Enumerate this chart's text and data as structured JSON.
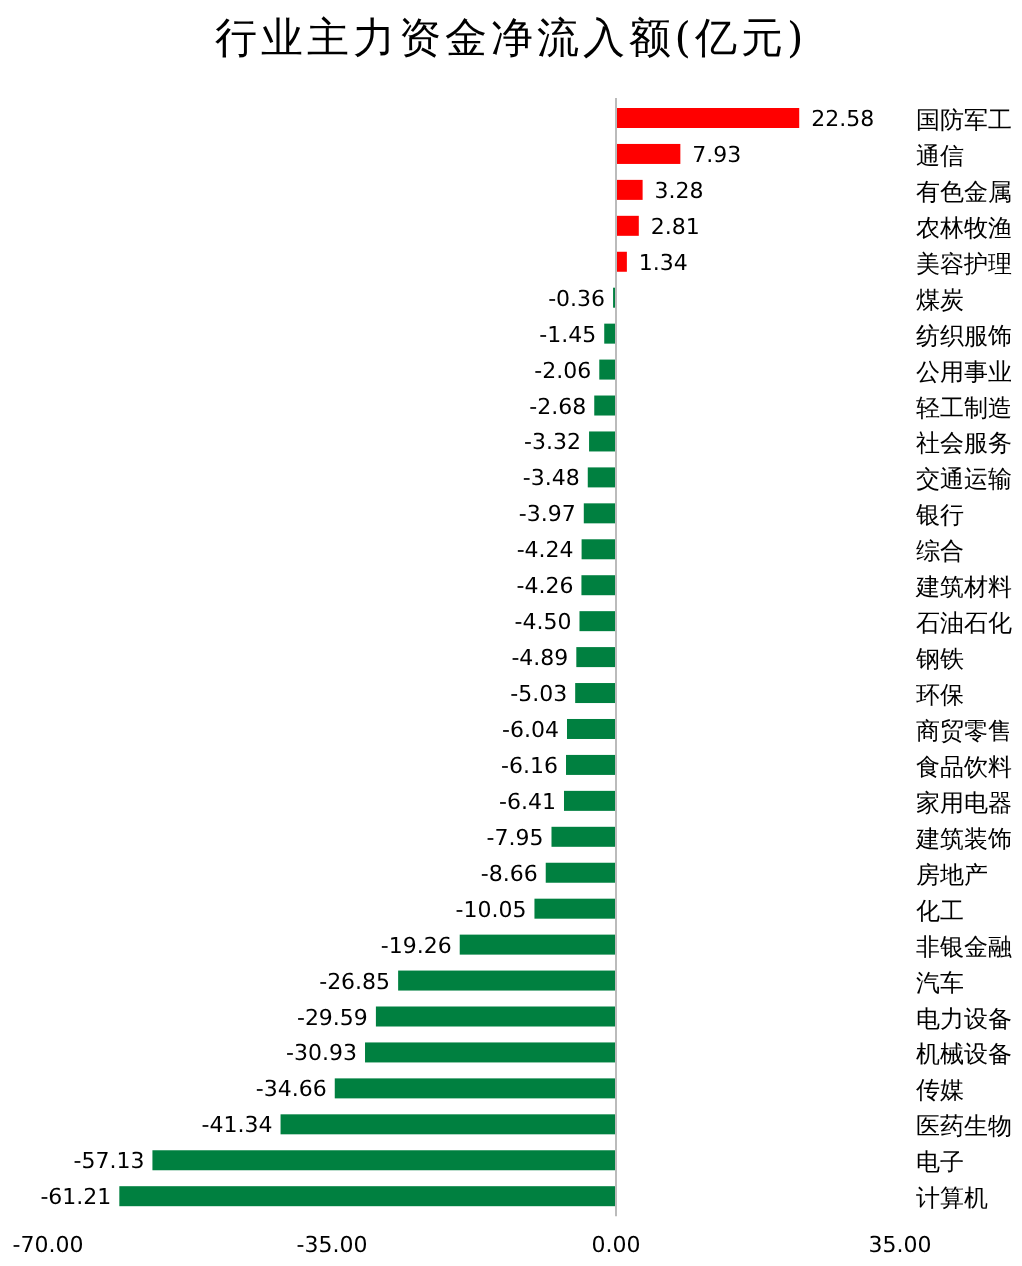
{
  "chart_data": {
    "type": "bar",
    "orientation": "horizontal",
    "title": "行业主力资金净流入额(亿元)",
    "categories": [
      "国防军工",
      "通信",
      "有色金属",
      "农林牧渔",
      "美容护理",
      "煤炭",
      "纺织服饰",
      "公用事业",
      "轻工制造",
      "社会服务",
      "交通运输",
      "银行",
      "综合",
      "建筑材料",
      "石油石化",
      "钢铁",
      "环保",
      "商贸零售",
      "食品饮料",
      "家用电器",
      "建筑装饰",
      "房地产",
      "化工",
      "非银金融",
      "汽车",
      "电力设备",
      "机械设备",
      "传媒",
      "医药生物",
      "电子",
      "计算机"
    ],
    "values": [
      22.58,
      7.93,
      3.28,
      2.81,
      1.34,
      -0.36,
      -1.45,
      -2.06,
      -2.68,
      -3.32,
      -3.48,
      -3.97,
      -4.24,
      -4.26,
      -4.5,
      -4.89,
      -5.03,
      -6.04,
      -6.16,
      -6.41,
      -7.95,
      -8.66,
      -10.05,
      -19.26,
      -26.85,
      -29.59,
      -30.93,
      -34.66,
      -41.34,
      -57.13,
      -61.21
    ],
    "value_labels": [
      "22.58",
      "7.93",
      "3.28",
      "2.81",
      "1.34",
      "-0.36",
      "-1.45",
      "-2.06",
      "-2.68",
      "-3.32",
      "-3.48",
      "-3.97",
      "-4.24",
      "-4.26",
      "-4.50",
      "-4.89",
      "-5.03",
      "-6.04",
      "-6.16",
      "-6.41",
      "-7.95",
      "-8.66",
      "-10.05",
      "-19.26",
      "-26.85",
      "-29.59",
      "-30.93",
      "-34.66",
      "-41.34",
      "-57.13",
      "-61.21"
    ],
    "colors": [
      "#ff0000",
      "#ff0000",
      "#ff0000",
      "#ff0000",
      "#ff0000",
      "#008040",
      "#008040",
      "#008040",
      "#008040",
      "#008040",
      "#008040",
      "#008040",
      "#008040",
      "#008040",
      "#008040",
      "#008040",
      "#008040",
      "#008040",
      "#008040",
      "#008040",
      "#008040",
      "#008040",
      "#008040",
      "#008040",
      "#008040",
      "#008040",
      "#008040",
      "#008040",
      "#008040",
      "#008040",
      "#008040"
    ],
    "xlim": [
      -70,
      35
    ],
    "xticks": [
      {
        "value": -70,
        "label": "-70.00"
      },
      {
        "value": -35,
        "label": "-35.00"
      },
      {
        "value": 0,
        "label": "0.00"
      },
      {
        "value": 35,
        "label": "35.00"
      }
    ]
  }
}
